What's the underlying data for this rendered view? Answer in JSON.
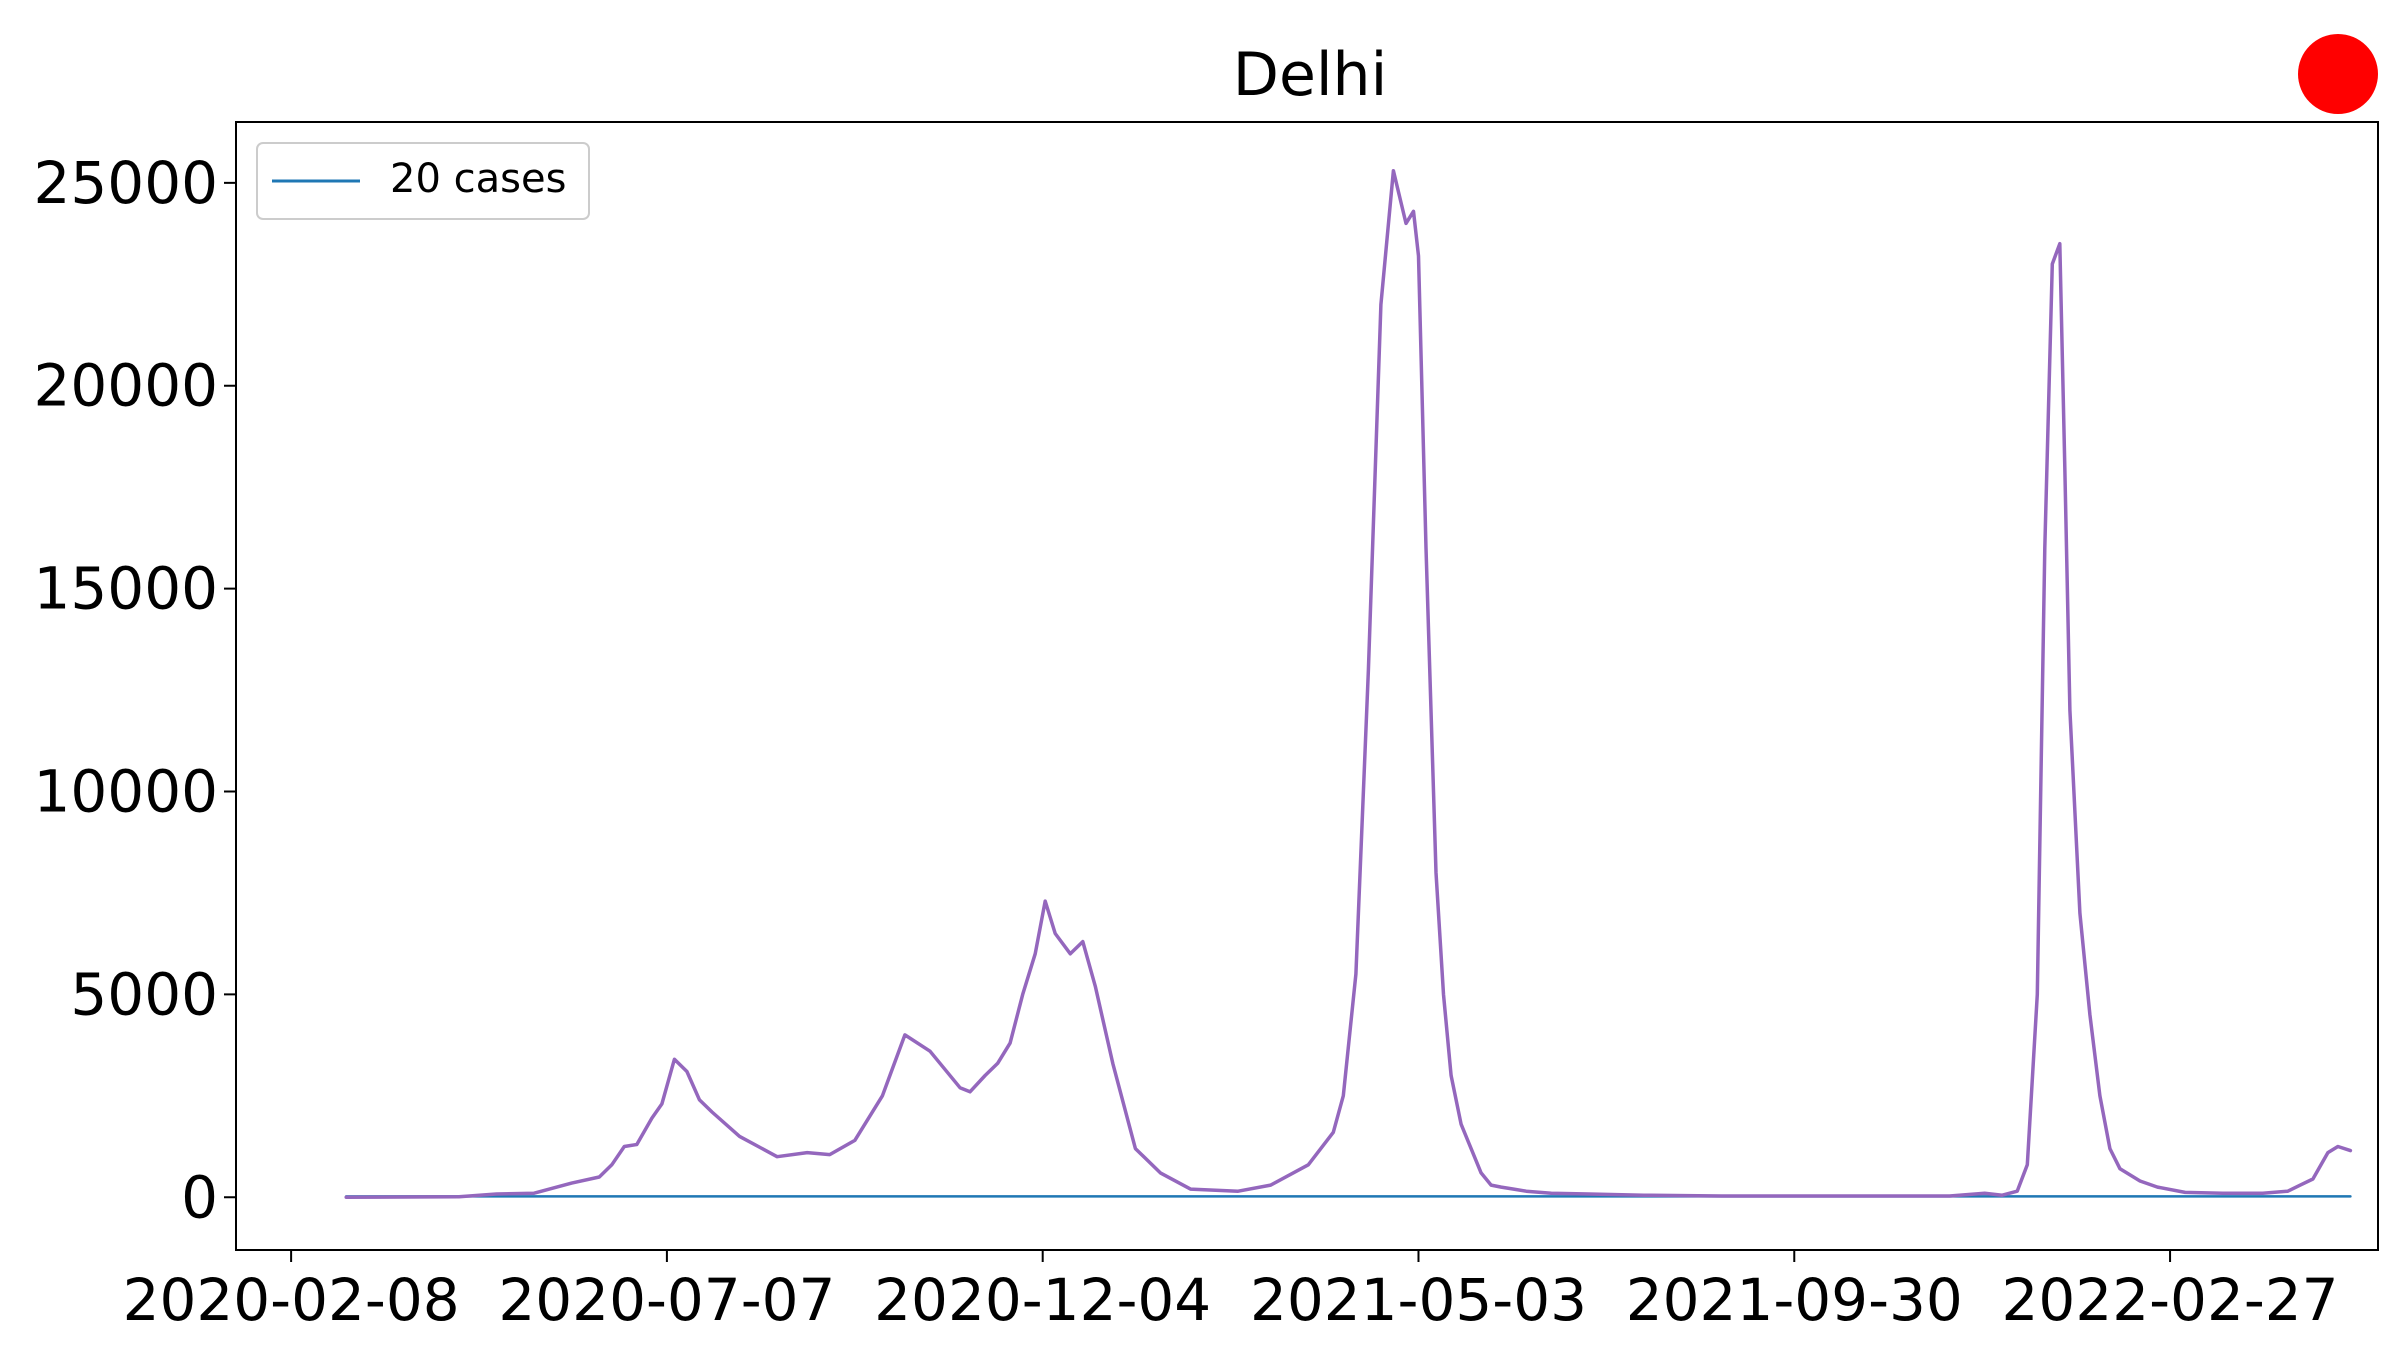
{
  "status_indicator": {
    "color": "#ff0000"
  },
  "chart_data": {
    "type": "line",
    "title": "Delhi",
    "xlabel": "",
    "ylabel": "",
    "x_range": [
      "2020-01-17",
      "2022-05-21"
    ],
    "ylim": [
      -1300,
      26500
    ],
    "y_ticks": [
      0,
      5000,
      10000,
      15000,
      20000,
      25000
    ],
    "x_ticks": [
      "2020-02-08",
      "2020-07-07",
      "2020-12-04",
      "2021-05-03",
      "2021-09-30",
      "2022-02-27"
    ],
    "grid": false,
    "legend": {
      "placement": "top-left",
      "entries": [
        "20 cases"
      ]
    },
    "series": [
      {
        "name": "20 cases",
        "color": "#1f77b4",
        "x": [
          "2020-03-01",
          "2022-05-10"
        ],
        "y": [
          20,
          20
        ]
      },
      {
        "color": "#9467bd",
        "x": [
          "2020-03-01",
          "2020-04-15",
          "2020-04-30",
          "2020-05-15",
          "2020-05-30",
          "2020-06-10",
          "2020-06-15",
          "2020-06-20",
          "2020-06-25",
          "2020-07-01",
          "2020-07-05",
          "2020-07-10",
          "2020-07-15",
          "2020-07-20",
          "2020-07-25",
          "2020-08-05",
          "2020-08-20",
          "2020-09-01",
          "2020-09-10",
          "2020-09-20",
          "2020-10-01",
          "2020-10-10",
          "2020-10-20",
          "2020-11-01",
          "2020-11-05",
          "2020-11-11",
          "2020-11-16",
          "2020-11-21",
          "2020-11-26",
          "2020-12-01",
          "2020-12-05",
          "2020-12-09",
          "2020-12-15",
          "2020-12-20",
          "2020-12-25",
          "2021-01-01",
          "2021-01-10",
          "2021-01-20",
          "2021-02-01",
          "2021-02-20",
          "2021-03-05",
          "2021-03-20",
          "2021-03-30",
          "2021-04-03",
          "2021-04-08",
          "2021-04-13",
          "2021-04-18",
          "2021-04-23",
          "2021-04-28",
          "2021-05-01",
          "2021-05-03",
          "2021-05-06",
          "2021-05-10",
          "2021-05-13",
          "2021-05-16",
          "2021-05-20",
          "2021-05-24",
          "2021-05-28",
          "2021-06-01",
          "2021-06-05",
          "2021-06-10",
          "2021-06-15",
          "2021-06-25",
          "2021-07-10",
          "2021-08-01",
          "2021-09-01",
          "2021-10-15",
          "2021-12-01",
          "2021-12-15",
          "2021-12-22",
          "2021-12-28",
          "2022-01-01",
          "2022-01-05",
          "2022-01-08",
          "2022-01-11",
          "2022-01-14",
          "2022-01-16",
          "2022-01-18",
          "2022-01-22",
          "2022-01-26",
          "2022-01-30",
          "2022-02-03",
          "2022-02-07",
          "2022-02-11",
          "2022-02-15",
          "2022-02-22",
          "2022-03-05",
          "2022-03-20",
          "2022-04-05",
          "2022-04-15",
          "2022-04-20",
          "2022-04-25",
          "2022-05-01",
          "2022-05-05",
          "2022-05-10"
        ],
        "y": [
          0,
          10,
          80,
          100,
          350,
          500,
          800,
          1250,
          1300,
          1950,
          2300,
          3400,
          3100,
          2400,
          2100,
          1500,
          1000,
          1100,
          1050,
          1400,
          2500,
          4000,
          3600,
          2700,
          2600,
          3000,
          3300,
          3800,
          5000,
          6000,
          7300,
          6500,
          6000,
          6300,
          5200,
          3300,
          1200,
          600,
          200,
          150,
          300,
          800,
          1600,
          2500,
          5500,
          13000,
          22000,
          25300,
          24000,
          24300,
          23200,
          16000,
          8000,
          5000,
          3000,
          1800,
          1200,
          600,
          300,
          250,
          200,
          150,
          100,
          80,
          50,
          30,
          30,
          30,
          100,
          50,
          150,
          800,
          5000,
          16000,
          23000,
          23500,
          18000,
          12000,
          7000,
          4500,
          2500,
          1200,
          700,
          550,
          400,
          250,
          120,
          100,
          100,
          150,
          300,
          450,
          1100,
          1250,
          1150
        ]
      }
    ]
  }
}
